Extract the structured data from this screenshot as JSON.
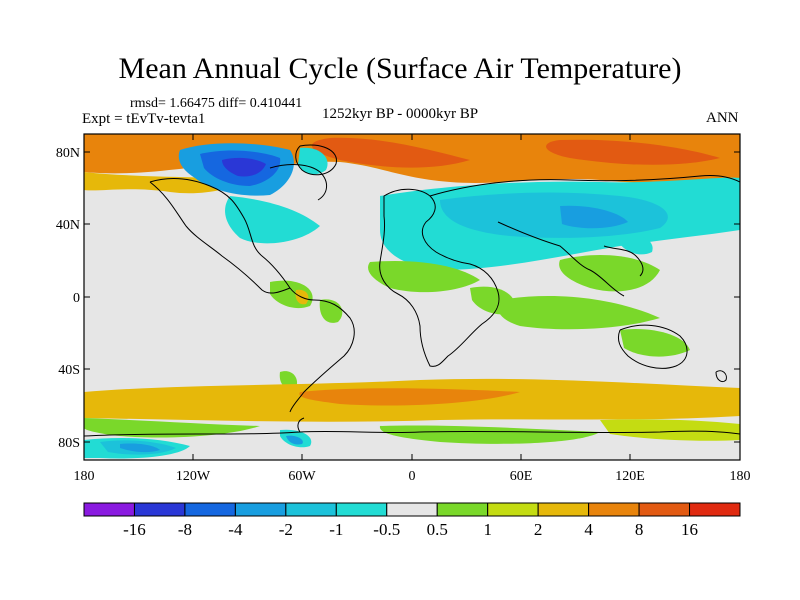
{
  "title": "Mean Annual Cycle (Surface Air Temperature)",
  "stats": "rmsd= 1.66475 diff= 0.410441",
  "experiment": "Expt = tEvTv-tevta1",
  "period": "1252kyr BP - 0000kyr BP",
  "season": "ANN",
  "map": {
    "projection": "cylindrical equidistant",
    "lon_range": [
      -180,
      180
    ],
    "lat_range": [
      -90,
      90
    ],
    "x_ticks": [
      "180",
      "120W",
      "60W",
      "0",
      "60E",
      "120E",
      "180"
    ],
    "y_ticks": [
      "80N",
      "40N",
      "0",
      "40S",
      "80S"
    ],
    "variable": "Surface Air Temperature difference"
  },
  "colorbar": {
    "levels": [
      "-16",
      "-8",
      "-4",
      "-2",
      "-1",
      "-0.5",
      "0.5",
      "1",
      "2",
      "4",
      "8",
      "16"
    ],
    "colors": [
      "#8a1ae0",
      "#2a37d6",
      "#1567e0",
      "#189ee0",
      "#1cc2da",
      "#22dcd4",
      "#e6e6e6",
      "#7ad82a",
      "#c4dc12",
      "#e6b80a",
      "#e8840c",
      "#e25a12",
      "#e02a10"
    ]
  }
}
